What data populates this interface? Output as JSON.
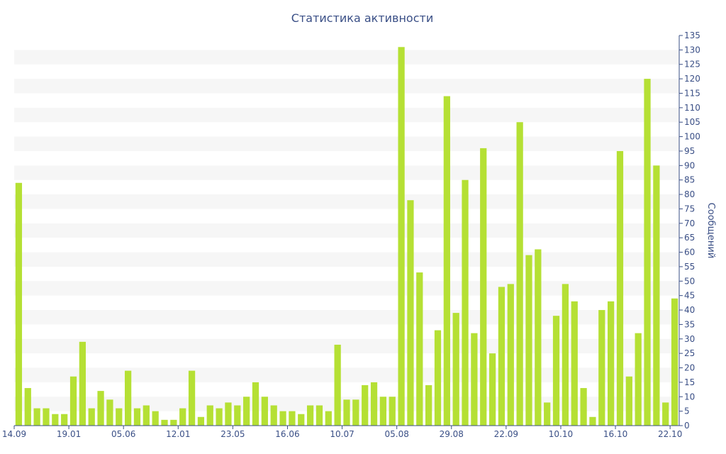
{
  "chart_data": {
    "type": "bar",
    "title": "Статистика активности",
    "xlabel": "",
    "ylabel": "Сообщений",
    "y_axis_position": "right",
    "ylim": [
      0,
      135
    ],
    "y_ticks": [
      0,
      5,
      10,
      15,
      20,
      25,
      30,
      35,
      40,
      45,
      50,
      55,
      60,
      65,
      70,
      75,
      80,
      85,
      90,
      95,
      100,
      105,
      110,
      115,
      120,
      125,
      130,
      135
    ],
    "grid": "horizontal-bands",
    "bar_color": "#b5e034",
    "band_color": "#f6f6f6",
    "axis_color": "#3a4f86",
    "x_tick_labels": [
      {
        "index": 0,
        "label": "14.09"
      },
      {
        "index": 6,
        "label": "19.01"
      },
      {
        "index": 12,
        "label": "05.06"
      },
      {
        "index": 18,
        "label": "12.01"
      },
      {
        "index": 24,
        "label": "23.05"
      },
      {
        "index": 30,
        "label": "16.06"
      },
      {
        "index": 36,
        "label": "10.07"
      },
      {
        "index": 42,
        "label": "05.08"
      },
      {
        "index": 48,
        "label": "29.08"
      },
      {
        "index": 54,
        "label": "22.09"
      },
      {
        "index": 60,
        "label": "10.10"
      },
      {
        "index": 66,
        "label": "16.10"
      },
      {
        "index": 72,
        "label": "22.10"
      }
    ],
    "values": [
      84,
      13,
      6,
      6,
      4,
      4,
      17,
      29,
      6,
      12,
      9,
      6,
      19,
      6,
      7,
      5,
      2,
      2,
      6,
      19,
      3,
      7,
      6,
      8,
      7,
      10,
      15,
      10,
      7,
      5,
      5,
      4,
      7,
      7,
      5,
      28,
      9,
      9,
      14,
      15,
      10,
      10,
      131,
      78,
      53,
      14,
      33,
      114,
      39,
      85,
      32,
      96,
      25,
      48,
      49,
      105,
      59,
      61,
      8,
      38,
      49,
      43,
      13,
      3,
      40,
      43,
      95,
      17,
      32,
      120,
      90,
      8,
      44
    ]
  }
}
